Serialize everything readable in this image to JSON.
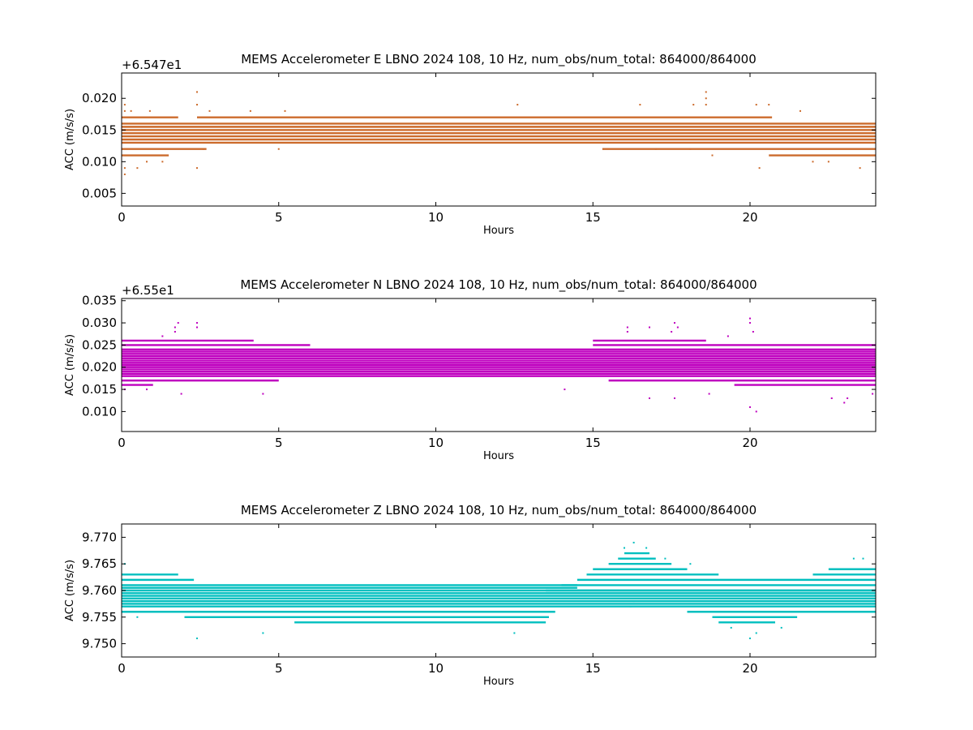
{
  "chart_data": [
    {
      "type": "scatter",
      "title": "MEMS Accelerometer E LBNO 2024 108, 10 Hz, num_obs/num_total: 864000/864000",
      "xlabel": "Hours",
      "ylabel": "ACC (m/s/s)",
      "offset_label": "+6.547e1",
      "color": "#cc6b2c",
      "xlim": [
        0,
        24
      ],
      "ylim": [
        0.003,
        0.024
      ],
      "xticks": [
        0,
        5,
        10,
        15,
        20
      ],
      "yticks": [
        0.005,
        0.01,
        0.015,
        0.02
      ],
      "ytick_labels": [
        "0.005",
        "0.010",
        "0.015",
        "0.020"
      ],
      "bands": [
        {
          "y": 0.011,
          "x0": 0,
          "x1": 1.5
        },
        {
          "y": 0.012,
          "x0": 0,
          "x1": 2.7
        },
        {
          "y": 0.013,
          "x0": 0,
          "x1": 24
        },
        {
          "y": 0.0135,
          "x0": 0,
          "x1": 24
        },
        {
          "y": 0.014,
          "x0": 0,
          "x1": 24
        },
        {
          "y": 0.0145,
          "x0": 0,
          "x1": 24
        },
        {
          "y": 0.015,
          "x0": 0,
          "x1": 24
        },
        {
          "y": 0.0155,
          "x0": 0,
          "x1": 24
        },
        {
          "y": 0.016,
          "x0": 0,
          "x1": 24
        },
        {
          "y": 0.017,
          "x0": 2.4,
          "x1": 20.7
        },
        {
          "y": 0.012,
          "x0": 15.3,
          "x1": 24
        },
        {
          "y": 0.011,
          "x0": 20.6,
          "x1": 24
        },
        {
          "y": 0.017,
          "x0": 0,
          "x1": 1.8
        }
      ],
      "points": [
        [
          0.1,
          0.019
        ],
        [
          0.1,
          0.018
        ],
        [
          0.1,
          0.009
        ],
        [
          0.1,
          0.008
        ],
        [
          0.3,
          0.018
        ],
        [
          0.5,
          0.009
        ],
        [
          0.9,
          0.018
        ],
        [
          2.4,
          0.021
        ],
        [
          2.4,
          0.019
        ],
        [
          2.4,
          0.009
        ],
        [
          0.8,
          0.01
        ],
        [
          1.3,
          0.01
        ],
        [
          2.6,
          0.012
        ],
        [
          2.8,
          0.018
        ],
        [
          4.1,
          0.018
        ],
        [
          5.0,
          0.012
        ],
        [
          5.2,
          0.018
        ],
        [
          12.6,
          0.019
        ],
        [
          16.5,
          0.019
        ],
        [
          17.0,
          0.012
        ],
        [
          18.6,
          0.021
        ],
        [
          18.6,
          0.02
        ],
        [
          18.6,
          0.019
        ],
        [
          18.2,
          0.019
        ],
        [
          18.1,
          0.012
        ],
        [
          18.8,
          0.011
        ],
        [
          20.3,
          0.009
        ],
        [
          20.2,
          0.019
        ],
        [
          20.6,
          0.019
        ],
        [
          23.5,
          0.009
        ],
        [
          22.0,
          0.01
        ],
        [
          22.5,
          0.01
        ],
        [
          21.6,
          0.018
        ],
        [
          23.8,
          0.016
        ]
      ]
    },
    {
      "type": "scatter",
      "title": "MEMS Accelerometer N LBNO 2024 108, 10 Hz, num_obs/num_total: 864000/864000",
      "xlabel": "Hours",
      "ylabel": "ACC (m/s/s)",
      "offset_label": "+6.55e1",
      "color": "#bf00bf",
      "xlim": [
        0,
        24
      ],
      "ylim": [
        0.0055,
        0.0355
      ],
      "xticks": [
        0,
        5,
        10,
        15,
        20
      ],
      "yticks": [
        0.01,
        0.015,
        0.02,
        0.025,
        0.03,
        0.035
      ],
      "ytick_labels": [
        "0.010",
        "0.015",
        "0.020",
        "0.025",
        "0.030",
        "0.035"
      ],
      "bands": [
        {
          "y": 0.018,
          "x0": 0,
          "x1": 24
        },
        {
          "y": 0.0185,
          "x0": 0,
          "x1": 24
        },
        {
          "y": 0.019,
          "x0": 0,
          "x1": 24
        },
        {
          "y": 0.0195,
          "x0": 0,
          "x1": 24
        },
        {
          "y": 0.02,
          "x0": 0,
          "x1": 24
        },
        {
          "y": 0.0205,
          "x0": 0,
          "x1": 24
        },
        {
          "y": 0.021,
          "x0": 0,
          "x1": 24
        },
        {
          "y": 0.0215,
          "x0": 0,
          "x1": 24
        },
        {
          "y": 0.022,
          "x0": 0,
          "x1": 24
        },
        {
          "y": 0.0225,
          "x0": 0,
          "x1": 24
        },
        {
          "y": 0.023,
          "x0": 0,
          "x1": 24
        },
        {
          "y": 0.0235,
          "x0": 0,
          "x1": 24
        },
        {
          "y": 0.024,
          "x0": 0,
          "x1": 24
        },
        {
          "y": 0.025,
          "x0": 0,
          "x1": 6.0
        },
        {
          "y": 0.025,
          "x0": 15.0,
          "x1": 24
        },
        {
          "y": 0.026,
          "x0": 0,
          "x1": 4.2
        },
        {
          "y": 0.026,
          "x0": 15.0,
          "x1": 18.6
        },
        {
          "y": 0.017,
          "x0": 0,
          "x1": 5.0
        },
        {
          "y": 0.017,
          "x0": 15.5,
          "x1": 24
        },
        {
          "y": 0.016,
          "x0": 0,
          "x1": 1.0
        },
        {
          "y": 0.016,
          "x0": 19.5,
          "x1": 24
        }
      ],
      "points": [
        [
          1.7,
          0.029
        ],
        [
          1.8,
          0.03
        ],
        [
          2.4,
          0.029
        ],
        [
          2.4,
          0.03
        ],
        [
          1.7,
          0.028
        ],
        [
          0.1,
          0.015
        ],
        [
          0.8,
          0.015
        ],
        [
          1.9,
          0.014
        ],
        [
          4.5,
          0.014
        ],
        [
          1.3,
          0.027
        ],
        [
          16.1,
          0.029
        ],
        [
          16.1,
          0.028
        ],
        [
          16.8,
          0.029
        ],
        [
          16.8,
          0.013
        ],
        [
          17.6,
          0.03
        ],
        [
          17.7,
          0.029
        ],
        [
          17.5,
          0.028
        ],
        [
          17.6,
          0.013
        ],
        [
          18.7,
          0.014
        ],
        [
          19.3,
          0.027
        ],
        [
          20.0,
          0.031
        ],
        [
          20.0,
          0.03
        ],
        [
          20.1,
          0.028
        ],
        [
          20.0,
          0.011
        ],
        [
          20.2,
          0.01
        ],
        [
          22.6,
          0.013
        ],
        [
          23.0,
          0.012
        ],
        [
          23.1,
          0.013
        ],
        [
          23.9,
          0.014
        ],
        [
          14.1,
          0.015
        ]
      ]
    },
    {
      "type": "scatter",
      "title": "MEMS Accelerometer Z LBNO 2024 108, 10 Hz, num_obs/num_total: 864000/864000",
      "xlabel": "Hours",
      "ylabel": "ACC (m/s/s)",
      "offset_label": "",
      "color": "#00bfbf",
      "xlim": [
        0,
        24
      ],
      "ylim": [
        9.7475,
        9.7725
      ],
      "xticks": [
        0,
        5,
        10,
        15,
        20
      ],
      "yticks": [
        9.75,
        9.755,
        9.76,
        9.765,
        9.77
      ],
      "ytick_labels": [
        "9.750",
        "9.755",
        "9.760",
        "9.765",
        "9.770"
      ],
      "bands": [
        {
          "y": 9.757,
          "x0": 0,
          "x1": 24
        },
        {
          "y": 9.7575,
          "x0": 0,
          "x1": 24
        },
        {
          "y": 9.758,
          "x0": 0,
          "x1": 24
        },
        {
          "y": 9.7585,
          "x0": 0,
          "x1": 24
        },
        {
          "y": 9.759,
          "x0": 0,
          "x1": 24
        },
        {
          "y": 9.7595,
          "x0": 0,
          "x1": 24
        },
        {
          "y": 9.76,
          "x0": 0,
          "x1": 24
        },
        {
          "y": 9.7605,
          "x0": 0,
          "x1": 14.5
        },
        {
          "y": 9.761,
          "x0": 0,
          "x1": 14.5
        },
        {
          "y": 9.762,
          "x0": 0,
          "x1": 2.3
        },
        {
          "y": 9.763,
          "x0": 0,
          "x1": 1.8
        },
        {
          "y": 9.756,
          "x0": 0,
          "x1": 13.8
        },
        {
          "y": 9.755,
          "x0": 2.0,
          "x1": 13.6
        },
        {
          "y": 9.754,
          "x0": 5.5,
          "x1": 13.5
        },
        {
          "y": 9.76,
          "x0": 13.5,
          "x1": 24
        },
        {
          "y": 9.761,
          "x0": 14.0,
          "x1": 24
        },
        {
          "y": 9.762,
          "x0": 14.5,
          "x1": 24
        },
        {
          "y": 9.763,
          "x0": 14.8,
          "x1": 19.0
        },
        {
          "y": 9.763,
          "x0": 22.0,
          "x1": 24
        },
        {
          "y": 9.764,
          "x0": 15.0,
          "x1": 18.0
        },
        {
          "y": 9.764,
          "x0": 22.5,
          "x1": 24
        },
        {
          "y": 9.765,
          "x0": 15.5,
          "x1": 17.5
        },
        {
          "y": 9.766,
          "x0": 15.8,
          "x1": 17.0
        },
        {
          "y": 9.767,
          "x0": 16.0,
          "x1": 16.8
        },
        {
          "y": 9.756,
          "x0": 18.0,
          "x1": 24
        },
        {
          "y": 9.755,
          "x0": 18.8,
          "x1": 21.5
        },
        {
          "y": 9.754,
          "x0": 19.0,
          "x1": 20.8
        }
      ],
      "points": [
        [
          16.3,
          9.769
        ],
        [
          16.0,
          9.768
        ],
        [
          16.7,
          9.768
        ],
        [
          2.4,
          9.751
        ],
        [
          4.5,
          9.752
        ],
        [
          12.5,
          9.752
        ],
        [
          0.1,
          9.765
        ],
        [
          20.0,
          9.751
        ],
        [
          20.2,
          9.752
        ],
        [
          19.4,
          9.753
        ],
        [
          21.0,
          9.753
        ],
        [
          17.3,
          9.766
        ],
        [
          18.1,
          9.765
        ],
        [
          23.3,
          9.766
        ],
        [
          23.6,
          9.766
        ],
        [
          0.5,
          9.755
        ],
        [
          16.3,
          9.758
        ],
        [
          16.2,
          9.757
        ]
      ]
    }
  ]
}
